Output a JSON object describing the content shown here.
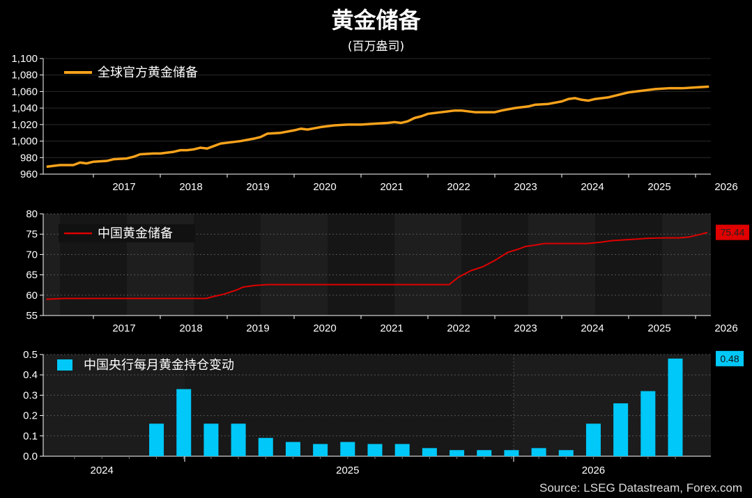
{
  "title": "黄金储备",
  "subtitle": "(百万盎司)",
  "source": "Source: LSEG Datastream, Forex.com",
  "colors": {
    "global": "#f7a21b",
    "china": "#e00000",
    "bars": "#00c8f8",
    "bg": "#000000",
    "panel": "#1c1c1c"
  },
  "chart_data": [
    {
      "type": "line",
      "series": [
        {
          "name": "全球官方黄金储备",
          "color": "#f7a21b"
        }
      ],
      "x_start": 2016.25,
      "x_end": 2026.25,
      "ylim": [
        960,
        1100
      ],
      "yticks": [
        960,
        980,
        1000,
        1020,
        1040,
        1060,
        1080,
        1100
      ],
      "ytick_labels": [
        "960",
        "980",
        "1,000",
        "1,020",
        "1,040",
        "1,060",
        "1,080",
        "1,100"
      ],
      "xticks": [
        "2017",
        "2018",
        "2019",
        "2020",
        "2021",
        "2022",
        "2023",
        "2024",
        "2025",
        "2026"
      ],
      "grid": true,
      "legend": "top-left",
      "points": [
        [
          2016.3,
          969
        ],
        [
          2016.5,
          971
        ],
        [
          2016.7,
          971
        ],
        [
          2016.8,
          974
        ],
        [
          2016.9,
          973
        ],
        [
          2017.0,
          975
        ],
        [
          2017.2,
          976
        ],
        [
          2017.3,
          978
        ],
        [
          2017.5,
          979
        ],
        [
          2017.6,
          981
        ],
        [
          2017.7,
          984
        ],
        [
          2017.9,
          985
        ],
        [
          2018.0,
          985
        ],
        [
          2018.2,
          987
        ],
        [
          2018.3,
          989
        ],
        [
          2018.4,
          989
        ],
        [
          2018.5,
          990
        ],
        [
          2018.6,
          992
        ],
        [
          2018.7,
          991
        ],
        [
          2018.8,
          994
        ],
        [
          2018.9,
          997
        ],
        [
          2019.0,
          998
        ],
        [
          2019.2,
          1000
        ],
        [
          2019.4,
          1003
        ],
        [
          2019.5,
          1005
        ],
        [
          2019.6,
          1009
        ],
        [
          2019.8,
          1010
        ],
        [
          2020.0,
          1013
        ],
        [
          2020.1,
          1015
        ],
        [
          2020.2,
          1014
        ],
        [
          2020.4,
          1017
        ],
        [
          2020.6,
          1019
        ],
        [
          2020.8,
          1020
        ],
        [
          2021.0,
          1020
        ],
        [
          2021.2,
          1021
        ],
        [
          2021.4,
          1022
        ],
        [
          2021.5,
          1023
        ],
        [
          2021.6,
          1022
        ],
        [
          2021.7,
          1024
        ],
        [
          2021.8,
          1028
        ],
        [
          2021.9,
          1030
        ],
        [
          2022.0,
          1033
        ],
        [
          2022.2,
          1035
        ],
        [
          2022.4,
          1037
        ],
        [
          2022.5,
          1037
        ],
        [
          2022.7,
          1035
        ],
        [
          2022.9,
          1035
        ],
        [
          2023.0,
          1035
        ],
        [
          2023.1,
          1037
        ],
        [
          2023.3,
          1040
        ],
        [
          2023.5,
          1042
        ],
        [
          2023.6,
          1044
        ],
        [
          2023.8,
          1045
        ],
        [
          2024.0,
          1048
        ],
        [
          2024.1,
          1051
        ],
        [
          2024.2,
          1052
        ],
        [
          2024.3,
          1050
        ],
        [
          2024.4,
          1049
        ],
        [
          2024.5,
          1051
        ],
        [
          2024.7,
          1053
        ],
        [
          2024.9,
          1057
        ],
        [
          2025.0,
          1059
        ],
        [
          2025.2,
          1061
        ],
        [
          2025.4,
          1063
        ],
        [
          2025.6,
          1064
        ],
        [
          2025.8,
          1064
        ],
        [
          2026.0,
          1065
        ],
        [
          2026.2,
          1066
        ]
      ]
    },
    {
      "type": "line",
      "series": [
        {
          "name": "中国黄金储备",
          "color": "#e00000"
        }
      ],
      "x_start": 2016.25,
      "x_end": 2026.25,
      "ylim": [
        55,
        80
      ],
      "yticks": [
        55,
        60,
        65,
        70,
        75,
        80
      ],
      "xticks": [
        "2017",
        "2018",
        "2019",
        "2020",
        "2021",
        "2022",
        "2023",
        "2024",
        "2025",
        "2026"
      ],
      "grid": true,
      "legend": "top-left",
      "last_value_label": "75.44",
      "points": [
        [
          2016.3,
          59.0
        ],
        [
          2016.6,
          59.2
        ],
        [
          2017.0,
          59.2
        ],
        [
          2018.0,
          59.2
        ],
        [
          2018.9,
          59.2
        ],
        [
          2019.0,
          59.6
        ],
        [
          2019.2,
          60.3
        ],
        [
          2019.4,
          61.3
        ],
        [
          2019.5,
          62.0
        ],
        [
          2019.7,
          62.4
        ],
        [
          2019.9,
          62.6
        ],
        [
          2020.0,
          62.6
        ],
        [
          2021.0,
          62.6
        ],
        [
          2022.0,
          62.6
        ],
        [
          2022.85,
          62.6
        ],
        [
          2023.0,
          64.4
        ],
        [
          2023.2,
          66.0
        ],
        [
          2023.4,
          67.0
        ],
        [
          2023.6,
          68.6
        ],
        [
          2023.8,
          70.5
        ],
        [
          2023.95,
          71.2
        ],
        [
          2024.1,
          72.0
        ],
        [
          2024.2,
          72.2
        ],
        [
          2024.4,
          72.7
        ],
        [
          2024.5,
          72.7
        ],
        [
          2025.0,
          72.7
        ],
        [
          2025.1,
          72.7
        ],
        [
          2025.3,
          73.0
        ],
        [
          2025.5,
          73.4
        ],
        [
          2025.7,
          73.6
        ],
        [
          2025.9,
          73.8
        ],
        [
          2026.1,
          74.0
        ],
        [
          2026.4,
          74.1
        ],
        [
          2026.6,
          74.1
        ],
        [
          2026.75,
          74.3
        ],
        [
          2026.95,
          75.0
        ],
        [
          2027.05,
          75.44
        ]
      ]
    },
    {
      "type": "bar",
      "series": [
        {
          "name": "中国央行每月黄金持仓变动",
          "color": "#00c8f8"
        }
      ],
      "ylim": [
        0,
        0.5
      ],
      "yticks": [
        0,
        0.1,
        0.2,
        0.3,
        0.4,
        0.5
      ],
      "ytick_labels": [
        "0.0",
        "0.1",
        "0.2",
        "0.3",
        "0.4",
        "0.5"
      ],
      "x_labels": [
        {
          "label": "2024",
          "month": 1
        },
        {
          "label": "2025",
          "month": 10
        },
        {
          "label": "2026",
          "month": 19
        }
      ],
      "grid": true,
      "legend": "top-left",
      "last_value_label": "0.48",
      "values": [
        0,
        0,
        0,
        0.16,
        0.33,
        0.16,
        0.16,
        0.09,
        0.07,
        0.06,
        0.07,
        0.06,
        0.06,
        0.04,
        0.03,
        0.03,
        0.03,
        0.04,
        0.03,
        0.16,
        0.26,
        0.32,
        0.48
      ]
    }
  ]
}
